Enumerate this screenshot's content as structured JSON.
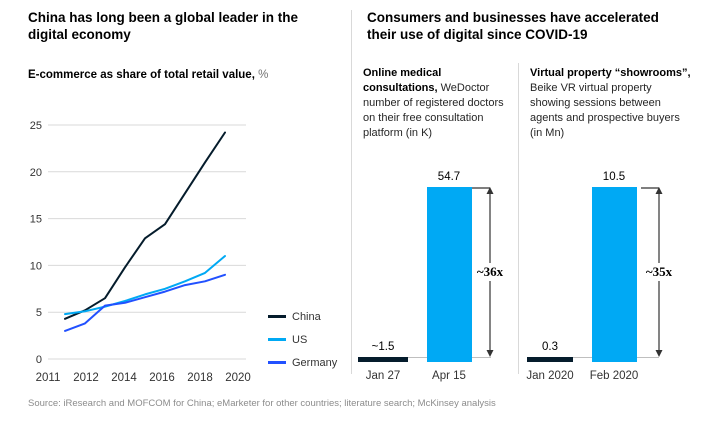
{
  "left_panel": {
    "legend_position": "right-bottom"
  },
  "right_panel": {
    "title": "Consumers and businesses have accelerated their use of digital since COVID-19"
  },
  "source": "Source: iResearch and MOFCOM for China; eMarketer for other countries; literature search; McKinsey analysis",
  "colors": {
    "deep_blue": "#051C2C",
    "cyan": "#00A9F4",
    "blue": "#2251FF",
    "gridline": "#d9d9d9",
    "baseline": "#bfbfbf",
    "arrow": "#333333"
  },
  "chart_data": [
    {
      "id": "ecommerce-share-line",
      "type": "line",
      "title": "China has long been a global leader in the digital economy",
      "subtitle_bold": "E-commerce as share of total retail value,",
      "subtitle_unit": "%",
      "x": [
        2011,
        2012,
        2013,
        2014,
        2015,
        2016,
        2017,
        2018,
        2019
      ],
      "x_tick_labels": [
        "2011",
        "2012",
        "2014",
        "2016",
        "2018",
        "2020"
      ],
      "xlim": [
        2011,
        2020
      ],
      "ylim": [
        0,
        25
      ],
      "yticks": [
        0,
        5,
        10,
        15,
        20,
        25
      ],
      "grid": true,
      "legend_position": "right-bottom",
      "series": [
        {
          "name": "China",
          "color": "#051C2C",
          "values": [
            4.3,
            5.2,
            6.5,
            9.8,
            12.9,
            14.4,
            17.7,
            21.0,
            24.2
          ]
        },
        {
          "name": "US",
          "color": "#00A9F4",
          "values": [
            4.8,
            5.1,
            5.6,
            6.2,
            6.9,
            7.5,
            8.3,
            9.2,
            11.0
          ]
        },
        {
          "name": "Germany",
          "color": "#2251FF",
          "values": [
            3.0,
            3.8,
            5.7,
            6.0,
            6.6,
            7.2,
            7.9,
            8.3,
            9.0
          ]
        }
      ]
    },
    {
      "id": "wedoctor-bars",
      "type": "bar",
      "heading_bold": "Online medical consultations,",
      "heading_rest": "WeDoctor number of registered doctors on their free consultation platform (in K)",
      "categories": [
        "Jan 27",
        "Apr 15"
      ],
      "values": [
        1.5,
        54.7
      ],
      "value_labels": [
        "~1.5",
        "54.7"
      ],
      "bar_colors": [
        "#051C2C",
        "#00A9F4"
      ],
      "multiplier_label": "~36x"
    },
    {
      "id": "beike-bars",
      "type": "bar",
      "heading_bold": "Virtual property “showrooms”,",
      "heading_rest": "Beike VR virtual property showing sessions between agents and prospective buyers (in Mn)",
      "categories": [
        "Jan 2020",
        "Feb 2020"
      ],
      "values": [
        0.3,
        10.5
      ],
      "value_labels": [
        "0.3",
        "10.5"
      ],
      "bar_colors": [
        "#051C2C",
        "#00A9F4"
      ],
      "multiplier_label": "~35x"
    }
  ]
}
